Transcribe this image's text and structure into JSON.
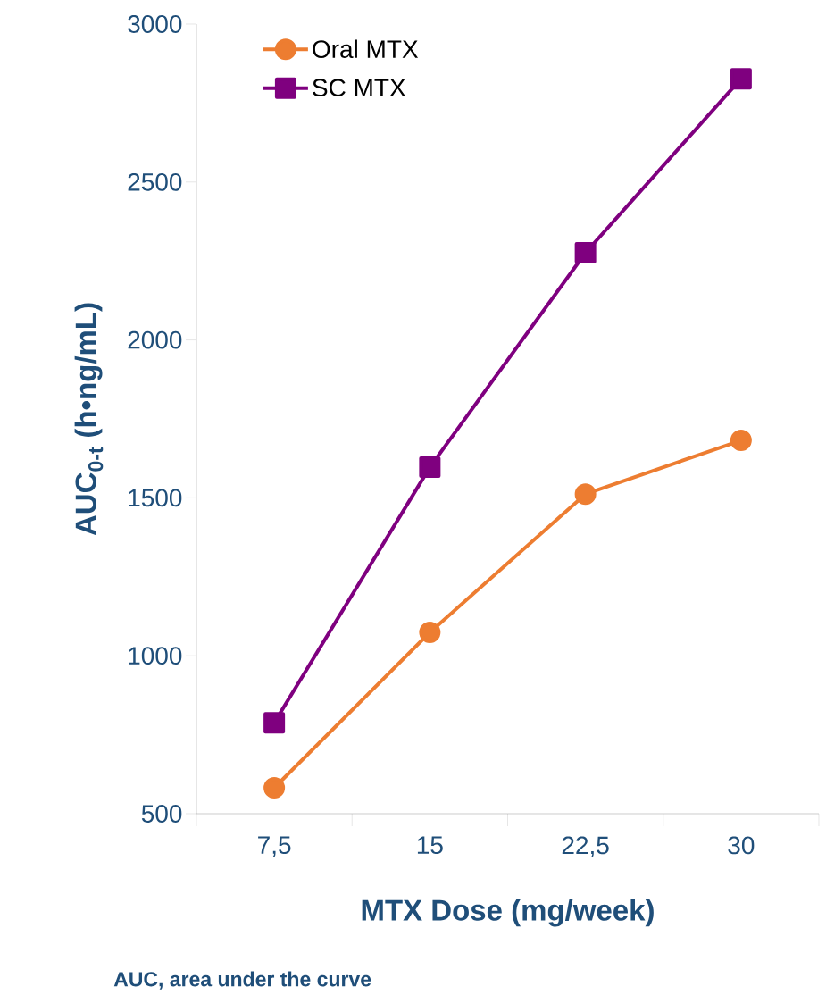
{
  "chart_data": {
    "type": "line",
    "categories": [
      "7,5",
      "15",
      "22,5",
      "30"
    ],
    "series": [
      {
        "name": "Oral MTX",
        "color": "#ed7d31",
        "marker": "circle",
        "values": [
          582,
          1074,
          1512,
          1682
        ]
      },
      {
        "name": "SC MTX",
        "color": "#7f007f",
        "marker": "square",
        "values": [
          788,
          1597,
          2276,
          2827
        ]
      }
    ],
    "xlabel": "MTX Dose (mg/week)",
    "ylabel": "AUC$_{0-t}$ (h•ng/mL)",
    "ylim": [
      500,
      3000
    ],
    "yticks": [
      500,
      1000,
      1500,
      2000,
      2500,
      3000
    ],
    "legend": "top left",
    "line_style": "solid",
    "grid": false,
    "annotations": [
      "**AUC**, area under the curve"
    ]
  }
}
